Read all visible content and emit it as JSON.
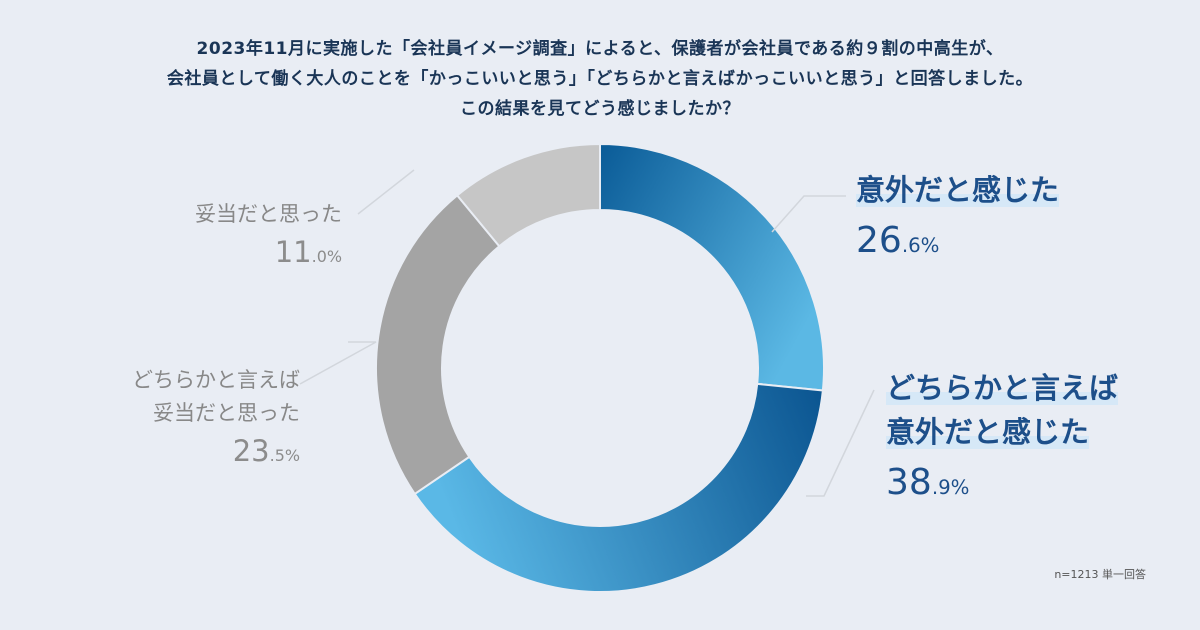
{
  "title_lines": [
    "2023年11月に実施した「会社員イメージ調査」によると、保護者が会社員である約９割の中高生が、",
    "会社員として働く大人のことを「かっこいいと思う」「どちらかと言えばかっこいいと思う」と回答しました。",
    "この結果を見てどう感じましたか？"
  ],
  "note": "n=1213 単一回答",
  "chart_data": {
    "type": "pie",
    "donut": true,
    "labels": [
      "意外だと感じた",
      "どちらかと言えば意外だと感じた",
      "どちらかと言えば妥当だと思った",
      "妥当だと思った"
    ],
    "values": [
      26.6,
      38.9,
      23.5,
      11.0
    ],
    "value_suffix": "%",
    "colors": [
      "#2a7cb8",
      "#1f6aa6",
      "#a4a4a4",
      "#c6c6c6"
    ]
  },
  "labels": {
    "a": {
      "line1": "意外だと感じた",
      "num": "26",
      "dec": ".6%"
    },
    "b": {
      "line1": "どちらかと言えば",
      "line2": "意外だと感じた",
      "num": "38",
      "dec": ".9%"
    },
    "c": {
      "line1": "どちらかと言えば",
      "line2": "妥当だと思った",
      "num": "23",
      "dec": ".5%"
    },
    "d": {
      "line1": "妥当だと思った",
      "num": "11",
      "dec": ".0%"
    }
  }
}
